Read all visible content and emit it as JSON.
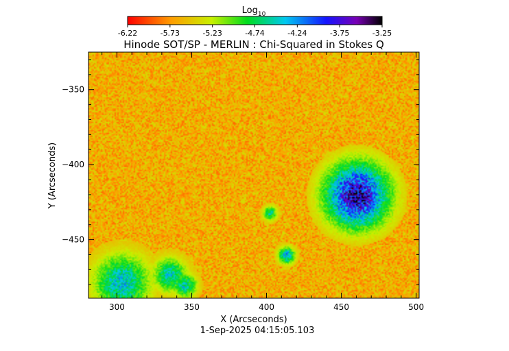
{
  "colorbar": {
    "label_main": "Log",
    "label_sub": "10",
    "ticks": [
      "-6.22",
      "-5.73",
      "-5.23",
      "-4.74",
      "-4.24",
      "-3.75",
      "-3.25"
    ],
    "range": [
      -6.22,
      -3.25
    ]
  },
  "footer_timestamp": "1-Sep-2025 04:15:05.103",
  "chart_data": {
    "type": "heatmap",
    "title": "Hinode SOT/SP - MERLIN : Chi-Squared in Stokes Q",
    "xlabel": "X (Arcseconds)",
    "ylabel": "Y (Arcseconds)",
    "xlim": [
      281,
      502
    ],
    "ylim": [
      -489,
      -325
    ],
    "xticks": [
      300,
      350,
      400,
      450,
      500
    ],
    "yticks": [
      -350,
      -400,
      -450
    ],
    "colorscale": "rainbow (red = low, violet/black = high)",
    "value_range_log10": [
      -6.22,
      -3.25
    ],
    "background_level_log10": -5.6,
    "features": [
      {
        "name": "sunspot",
        "x": 460,
        "y": -420,
        "radius": 27,
        "peak_log10": -3.6
      },
      {
        "name": "plage",
        "x": 303,
        "y": -478,
        "radius": 23,
        "peak_log10": -4.4
      },
      {
        "name": "plage",
        "x": 335,
        "y": -473,
        "radius": 14,
        "peak_log10": -4.5
      },
      {
        "name": "plage",
        "x": 345,
        "y": -480,
        "radius": 10,
        "peak_log10": -4.5
      },
      {
        "name": "plage",
        "x": 413,
        "y": -460,
        "radius": 7,
        "peak_log10": -4.3
      },
      {
        "name": "plage",
        "x": 402,
        "y": -432,
        "radius": 6,
        "peak_log10": -4.6
      }
    ]
  }
}
